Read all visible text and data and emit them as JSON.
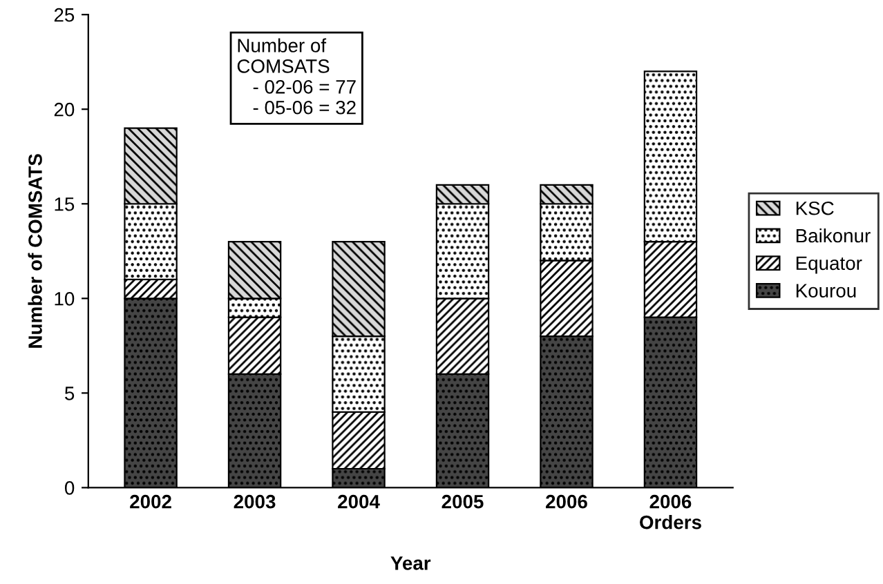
{
  "chart_data": {
    "type": "bar",
    "stacked": true,
    "xlabel": "Year",
    "ylabel": "Number of COMSATS",
    "categories": [
      "2002",
      "2003",
      "2004",
      "2005",
      "2006",
      "2006\nOrders"
    ],
    "series": [
      {
        "name": "Kourou",
        "color": "#454545",
        "values": [
          10,
          6,
          1,
          6,
          8,
          9
        ]
      },
      {
        "name": "Equator",
        "color": "#ffffff",
        "values": [
          1,
          3,
          3,
          4,
          4,
          4
        ]
      },
      {
        "name": "Baikonur",
        "color": "#ffffff",
        "values": [
          4,
          1,
          4,
          5,
          3,
          9
        ]
      },
      {
        "name": "KSC",
        "color": "#d8d8d8",
        "values": [
          4,
          3,
          5,
          1,
          1,
          null
        ]
      }
    ],
    "ylim": [
      0,
      25
    ],
    "yticks": [
      0,
      5,
      10,
      15,
      20,
      25
    ],
    "grid": false,
    "legend": "right",
    "annotations": [
      "Number of\nCOMSATS\n   - 02-06 = 77\n   - 05-06 = 32"
    ]
  }
}
